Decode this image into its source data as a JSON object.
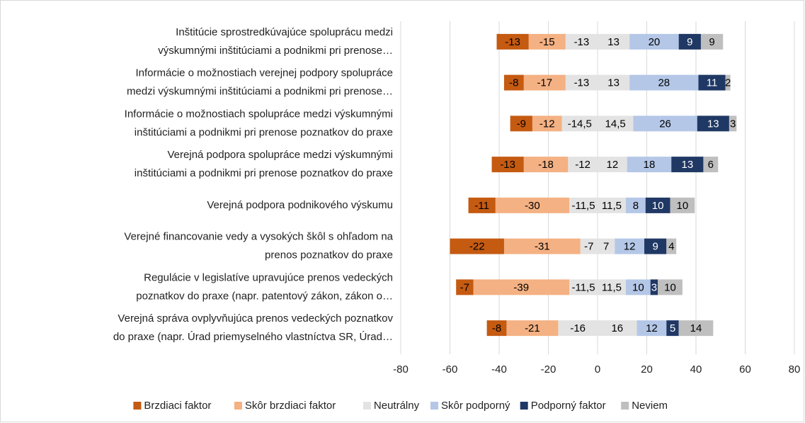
{
  "chart_data": {
    "type": "diverging_bar",
    "categories": [
      [
        "Inštitúcie sprostredkúvajúce spoluprácu medzi",
        "výskumnými inštitúciami a podnikmi pri prenose…"
      ],
      [
        "Informácie o možnostiach verejnej podpory spolupráce",
        "medzi výskumnými inštitúciami a podnikmi pri prenose…"
      ],
      [
        "Informácie o možnostiach spolupráce medzi výskumnými",
        "inštitúciami a podnikmi pri prenose poznatkov do praxe"
      ],
      [
        "Verejná podpora spolupráce medzi výskumnými",
        "inštitúciami a podnikmi pri prenose poznatkov do praxe"
      ],
      [
        "Verejná podpora podnikového výskumu"
      ],
      [
        "Verejné financovanie vedy a vysokých škôl s ohľadom na",
        "prenos poznatkov do praxe"
      ],
      [
        "Regulácie v legislatíve upravujúce prenos vedeckých",
        "poznatkov do praxe (napr. patentový zákon, zákon o…"
      ],
      [
        "Verejná správa ovplyvňujúca prenos vedeckých poznatkov",
        "do praxe (napr. Úrad priemyselného vlastníctva SR, Úrad…"
      ]
    ],
    "series": [
      {
        "name": "Brzdiaci faktor",
        "color": "#c55a11",
        "label_color": "#000000",
        "values": [
          -13,
          -8,
          -9,
          -13,
          -11,
          -22,
          -7,
          -8
        ]
      },
      {
        "name": "Skôr brzdiaci faktor",
        "color": "#f4b183",
        "label_color": "#000000",
        "values": [
          -15,
          -17,
          -12,
          -18,
          -30,
          -31,
          -39,
          -21
        ]
      },
      {
        "name": "Neutrálny",
        "color": "#e3e3e3",
        "label_color": "#000000",
        "values": [
          [
            -13,
            13
          ],
          [
            -13,
            13
          ],
          [
            -14.5,
            14.5
          ],
          [
            -12,
            12
          ],
          [
            -11.5,
            11.5
          ],
          [
            -7,
            7
          ],
          [
            -11.5,
            11.5
          ],
          [
            -16,
            16
          ]
        ],
        "value_labels": [
          [
            "-13",
            "13"
          ],
          [
            "-13",
            "13"
          ],
          [
            "-14,5",
            "14,5"
          ],
          [
            "-12",
            "12"
          ],
          [
            "-11,5",
            "11,5"
          ],
          [
            "-7",
            "7"
          ],
          [
            "-11,5",
            "11,5"
          ],
          [
            "-16",
            "16"
          ]
        ]
      },
      {
        "name": "Skôr podporný",
        "color": "#b4c7e7",
        "label_color": "#000000",
        "values": [
          20,
          28,
          26,
          18,
          8,
          12,
          10,
          12
        ]
      },
      {
        "name": "Podporný faktor",
        "color": "#203864",
        "label_color": "#ffffff",
        "values": [
          9,
          11,
          13,
          13,
          10,
          9,
          3,
          5
        ]
      },
      {
        "name": "Neviem",
        "color": "#bfbfbf",
        "label_color": "#000000",
        "values": [
          9,
          2,
          3,
          6,
          10,
          4,
          10,
          14
        ]
      }
    ],
    "xlim": [
      -80,
      80
    ],
    "xticks": [
      -80,
      -60,
      -40,
      -20,
      0,
      20,
      40,
      60,
      80
    ],
    "grid": true
  }
}
